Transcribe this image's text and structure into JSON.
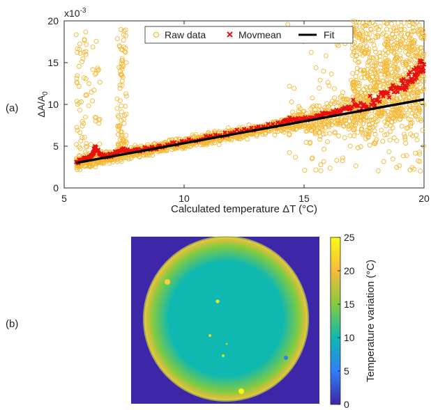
{
  "panel_labels": {
    "a": "(a)",
    "b": "(b)"
  },
  "chart_data": [
    {
      "type": "scatter",
      "xlabel": "Calculated temperature  ΔT (°C)",
      "ylabel": "ΔA/A0",
      "ylabel_main": "ΔA/A",
      "ylabel_sub": "0",
      "y_multiplier_base": "x10",
      "y_multiplier_exp": "-3",
      "xlim": [
        5,
        20
      ],
      "ylim": [
        0,
        20
      ],
      "xticks": [
        5,
        10,
        15,
        20
      ],
      "yticks": [
        0,
        5,
        10,
        15,
        20
      ],
      "grid": false,
      "legend": "top-right",
      "series": [
        {
          "name": "Raw data",
          "marker": "circle",
          "color": "#f5b731",
          "cluster_ranges": [
            [
              5.5,
              6.5,
              2.5,
              19
            ],
            [
              7.2,
              7.6,
              4,
              19.5
            ],
            [
              14.3,
              20,
              2,
              20
            ]
          ]
        },
        {
          "name": "Movmean",
          "marker": "x",
          "color": "#e8100f",
          "points": [
            [
              5.5,
              3.1
            ],
            [
              5.8,
              3.4
            ],
            [
              6.0,
              3.6
            ],
            [
              6.2,
              4.2
            ],
            [
              6.3,
              4.8
            ],
            [
              6.6,
              3.8
            ],
            [
              7.0,
              4.0
            ],
            [
              7.4,
              4.6
            ],
            [
              7.8,
              4.4
            ],
            [
              8.5,
              4.7
            ],
            [
              9.0,
              5.0
            ],
            [
              10,
              5.5
            ],
            [
              11,
              6.1
            ],
            [
              12,
              6.6
            ],
            [
              13,
              7.2
            ],
            [
              14,
              7.7
            ],
            [
              14.5,
              8.3
            ],
            [
              15,
              8.2
            ],
            [
              15.5,
              8.6
            ],
            [
              16,
              8.9
            ],
            [
              16.5,
              9.2
            ],
            [
              17,
              9.7
            ],
            [
              17.5,
              10.0
            ],
            [
              18,
              10.5
            ],
            [
              18.5,
              11.3
            ],
            [
              19,
              12.0
            ],
            [
              19.3,
              12.8
            ],
            [
              19.6,
              13.6
            ],
            [
              19.8,
              14.5
            ],
            [
              20,
              14.8
            ]
          ]
        },
        {
          "name": "Fit",
          "marker": "line",
          "color": "#000000",
          "x": [
            5.5,
            20
          ],
          "y": [
            3.0,
            10.6
          ]
        }
      ]
    },
    {
      "type": "heatmap",
      "colorbar_label": "Temperature variation (°C)",
      "colorbar_ticks": [
        0,
        5,
        10,
        15,
        20,
        25
      ],
      "range": [
        0,
        25
      ],
      "colormap": [
        "#3e26a8",
        "#2e7ff6",
        "#0fb8b0",
        "#84cb3f",
        "#f8ba3c",
        "#f9fb15"
      ],
      "background_value": 0,
      "center_value": 9,
      "edge_value": 19
    }
  ]
}
